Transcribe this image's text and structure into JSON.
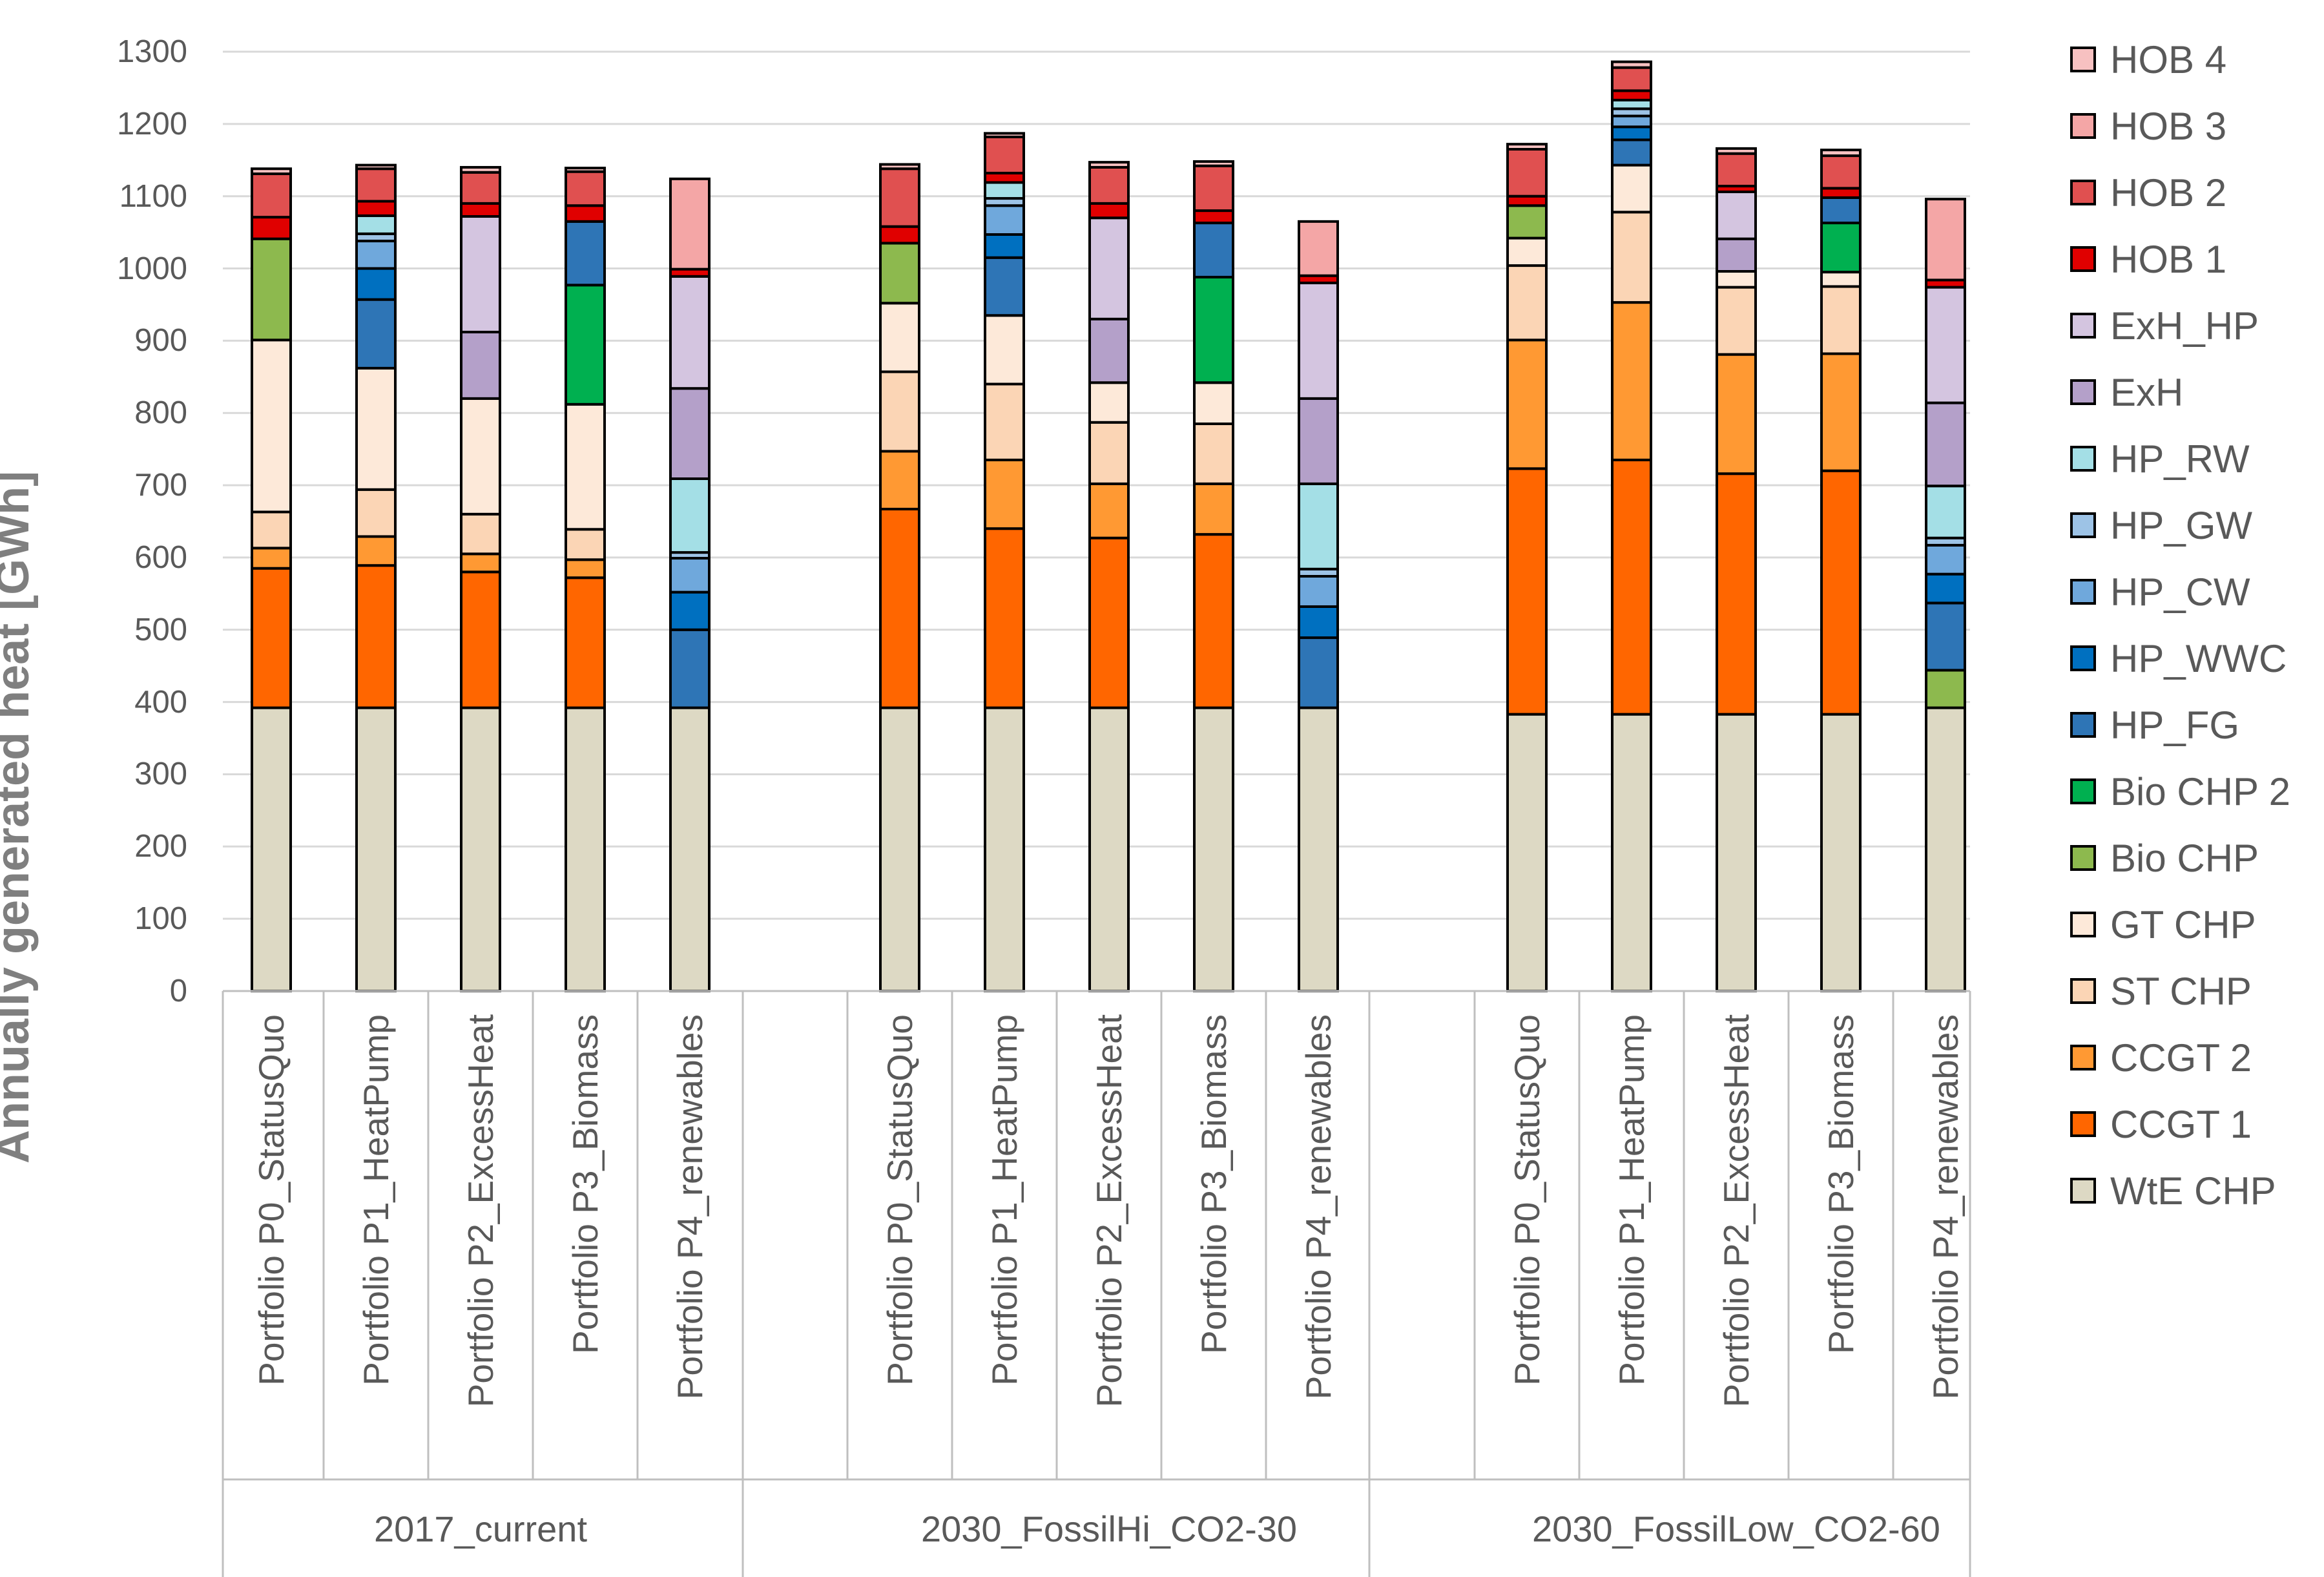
{
  "chart_data": {
    "type": "bar",
    "stacked": true,
    "title": "",
    "ylabel": "Annually generated heat [GWh]",
    "xlabel": "",
    "ylim": [
      0,
      1300
    ],
    "yticks": [
      0,
      100,
      200,
      300,
      400,
      500,
      600,
      700,
      800,
      900,
      1000,
      1100,
      1200,
      1300
    ],
    "grid": true,
    "legend_position": "right",
    "groups": [
      {
        "name": "2017_current",
        "categories": [
          "Portfolio P0_StatusQuo",
          "Portfolio P1_HeatPump",
          "Portfolio P2_ExcessHeat",
          "Portfolio P3_Biomass",
          "Portfolio P4_renewables"
        ]
      },
      {
        "name": "2030_FossilHi_CO2-30",
        "categories": [
          "Portfolio P0_StatusQuo",
          "Portfolio P1_HeatPump",
          "Portfolio P2_ExcessHeat",
          "Portfolio P3_Biomass",
          "Portfolio P4_renewables"
        ]
      },
      {
        "name": "2030_FossilLow_CO2-60",
        "categories": [
          "Portfolio P0_StatusQuo",
          "Portfolio P1_HeatPump",
          "Portfolio P2_ExcessHeat",
          "Portfolio P3_Biomass",
          "Portfolio P4_renewables"
        ]
      }
    ],
    "series": [
      {
        "name": "WtE CHP",
        "color": "#ddd9c4",
        "values": [
          392,
          392,
          392,
          392,
          392,
          392,
          392,
          392,
          392,
          392,
          383,
          383,
          383,
          383,
          392
        ]
      },
      {
        "name": "CCGT 1",
        "color": "#ff6600",
        "values": [
          193,
          197,
          188,
          180,
          0,
          275,
          248,
          235,
          240,
          0,
          340,
          352,
          333,
          337,
          0
        ]
      },
      {
        "name": "CCGT 2",
        "color": "#ff9933",
        "values": [
          28,
          40,
          25,
          25,
          0,
          80,
          95,
          75,
          70,
          0,
          178,
          218,
          165,
          162,
          0
        ]
      },
      {
        "name": "ST CHP",
        "color": "#fbd5b5",
        "values": [
          50,
          65,
          55,
          42,
          0,
          110,
          105,
          85,
          83,
          0,
          103,
          125,
          93,
          93,
          0
        ]
      },
      {
        "name": "GT CHP",
        "color": "#fde9d9",
        "values": [
          238,
          168,
          160,
          173,
          0,
          95,
          95,
          55,
          57,
          0,
          38,
          65,
          22,
          20,
          0
        ]
      },
      {
        "name": "Bio CHP",
        "color": "#8db94e",
        "values": [
          140,
          0,
          0,
          0,
          0,
          83,
          0,
          0,
          0,
          0,
          45,
          0,
          0,
          0,
          52
        ]
      },
      {
        "name": "Bio CHP 2",
        "color": "#00b050",
        "values": [
          0,
          0,
          0,
          165,
          0,
          0,
          0,
          0,
          146,
          0,
          0,
          0,
          0,
          68,
          0
        ]
      },
      {
        "name": "HP_FG",
        "color": "#2e75b6",
        "values": [
          0,
          95,
          0,
          88,
          108,
          0,
          80,
          0,
          75,
          97,
          0,
          35,
          0,
          35,
          93
        ]
      },
      {
        "name": "HP_WWC",
        "color": "#0070c0",
        "values": [
          0,
          43,
          0,
          0,
          52,
          0,
          32,
          0,
          0,
          43,
          0,
          18,
          0,
          0,
          40
        ]
      },
      {
        "name": "HP_CW",
        "color": "#6fa8dc",
        "values": [
          0,
          38,
          0,
          0,
          47,
          0,
          40,
          0,
          0,
          42,
          0,
          15,
          0,
          0,
          40
        ]
      },
      {
        "name": "HP_GW",
        "color": "#9dc3e6",
        "values": [
          0,
          10,
          0,
          0,
          8,
          0,
          10,
          0,
          0,
          10,
          0,
          10,
          0,
          0,
          10
        ]
      },
      {
        "name": "HP_RW",
        "color": "#a4dfe6",
        "values": [
          0,
          25,
          0,
          0,
          102,
          0,
          22,
          0,
          0,
          118,
          0,
          12,
          0,
          0,
          72
        ]
      },
      {
        "name": "ExH",
        "color": "#b4a0c9",
        "values": [
          0,
          0,
          92,
          0,
          125,
          0,
          0,
          88,
          0,
          118,
          0,
          0,
          45,
          0,
          115
        ]
      },
      {
        "name": "ExH_HP",
        "color": "#d4c5e0",
        "values": [
          0,
          0,
          160,
          0,
          155,
          0,
          0,
          140,
          0,
          160,
          0,
          0,
          65,
          0,
          160
        ]
      },
      {
        "name": "HOB 1",
        "color": "#e00000",
        "values": [
          30,
          20,
          18,
          22,
          10,
          23,
          13,
          20,
          17,
          10,
          13,
          13,
          8,
          13,
          10
        ]
      },
      {
        "name": "HOB 2",
        "color": "#e05050",
        "values": [
          60,
          45,
          43,
          47,
          0,
          80,
          50,
          50,
          62,
          0,
          65,
          32,
          45,
          45,
          0
        ]
      },
      {
        "name": "HOB 3",
        "color": "#f4a6a6",
        "values": [
          0,
          0,
          0,
          0,
          125,
          0,
          0,
          0,
          0,
          75,
          0,
          0,
          0,
          0,
          112
        ]
      },
      {
        "name": "HOB 4",
        "color": "#f7c1c1",
        "values": [
          7,
          5,
          7,
          5,
          0,
          6,
          5,
          7,
          6,
          0,
          7,
          8,
          7,
          8,
          0
        ]
      }
    ],
    "legend_order": [
      "HOB 4",
      "HOB 3",
      "HOB 2",
      "HOB 1",
      "ExH_HP",
      "ExH",
      "HP_RW",
      "HP_GW",
      "HP_CW",
      "HP_WWC",
      "HP_FG",
      "Bio CHP 2",
      "Bio CHP",
      "GT CHP",
      "ST CHP",
      "CCGT 2",
      "CCGT 1",
      "WtE CHP"
    ]
  }
}
